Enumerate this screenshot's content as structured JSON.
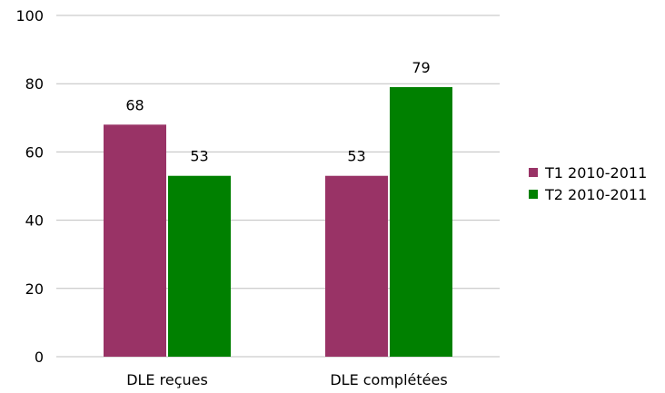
{
  "chart_data": {
    "type": "bar",
    "categories": [
      "DLE reçues",
      "DLE complétées"
    ],
    "series": [
      {
        "name": "T1 2010-2011",
        "values": [
          68,
          53
        ],
        "color": "#993366"
      },
      {
        "name": "T2 2010-2011",
        "values": [
          53,
          79
        ],
        "color": "#008000"
      }
    ],
    "ylim": [
      0,
      100
    ],
    "yticks": [
      0,
      20,
      40,
      60,
      80,
      100
    ],
    "grid": true,
    "data_labels": true,
    "legend_position": "right",
    "title": "",
    "xlabel": "",
    "ylabel": ""
  }
}
